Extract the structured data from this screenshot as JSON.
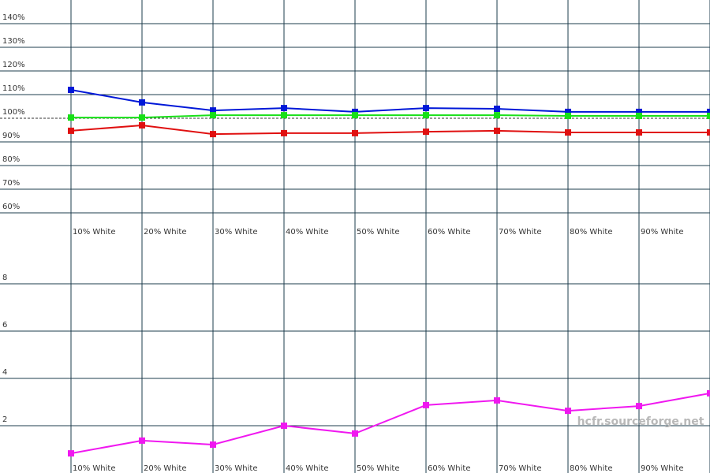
{
  "watermark": "hcfr.sourceforge.net",
  "chart_data": [
    {
      "type": "line",
      "categories": [
        "10% White",
        "20% White",
        "30% White",
        "40% White",
        "50% White",
        "60% White",
        "70% White",
        "80% White",
        "90% White",
        null
      ],
      "ylim": [
        50,
        150
      ],
      "yticks": [
        {
          "value": 60,
          "label": "60%"
        },
        {
          "value": 70,
          "label": "70%"
        },
        {
          "value": 80,
          "label": "80%"
        },
        {
          "value": 90,
          "label": "90%"
        },
        {
          "value": 100,
          "label": "100%"
        },
        {
          "value": 110,
          "label": "110%"
        },
        {
          "value": 120,
          "label": "120%"
        },
        {
          "value": 130,
          "label": "130%"
        },
        {
          "value": 140,
          "label": "140%"
        }
      ],
      "grid": true,
      "reference_line": 100,
      "series": [
        {
          "color": "#0018d8",
          "values": [
            112,
            106.7,
            103.3,
            104.3,
            102.7,
            104.3,
            104,
            102.7,
            102.7,
            102.7
          ]
        },
        {
          "color": "#18e018",
          "values": [
            100.3,
            100.3,
            101.3,
            101.3,
            101.3,
            101.3,
            101.3,
            101,
            101,
            101
          ]
        },
        {
          "color": "#e01010",
          "values": [
            94.7,
            97,
            93.3,
            93.7,
            93.7,
            94.3,
            94.7,
            94,
            94,
            94
          ]
        }
      ]
    },
    {
      "type": "line",
      "categories": [
        "10% White",
        "20% White",
        "30% White",
        "40% White",
        "50% White",
        "60% White",
        "70% White",
        "80% White",
        "90% White",
        null
      ],
      "ylim": [
        0,
        10
      ],
      "yticks": [
        2,
        4,
        6,
        8
      ],
      "grid": true,
      "series": [
        {
          "color": "#f018f0",
          "values": [
            0.83,
            1.37,
            1.2,
            2.0,
            1.67,
            2.87,
            3.07,
            2.63,
            2.83,
            3.37
          ]
        }
      ]
    }
  ]
}
